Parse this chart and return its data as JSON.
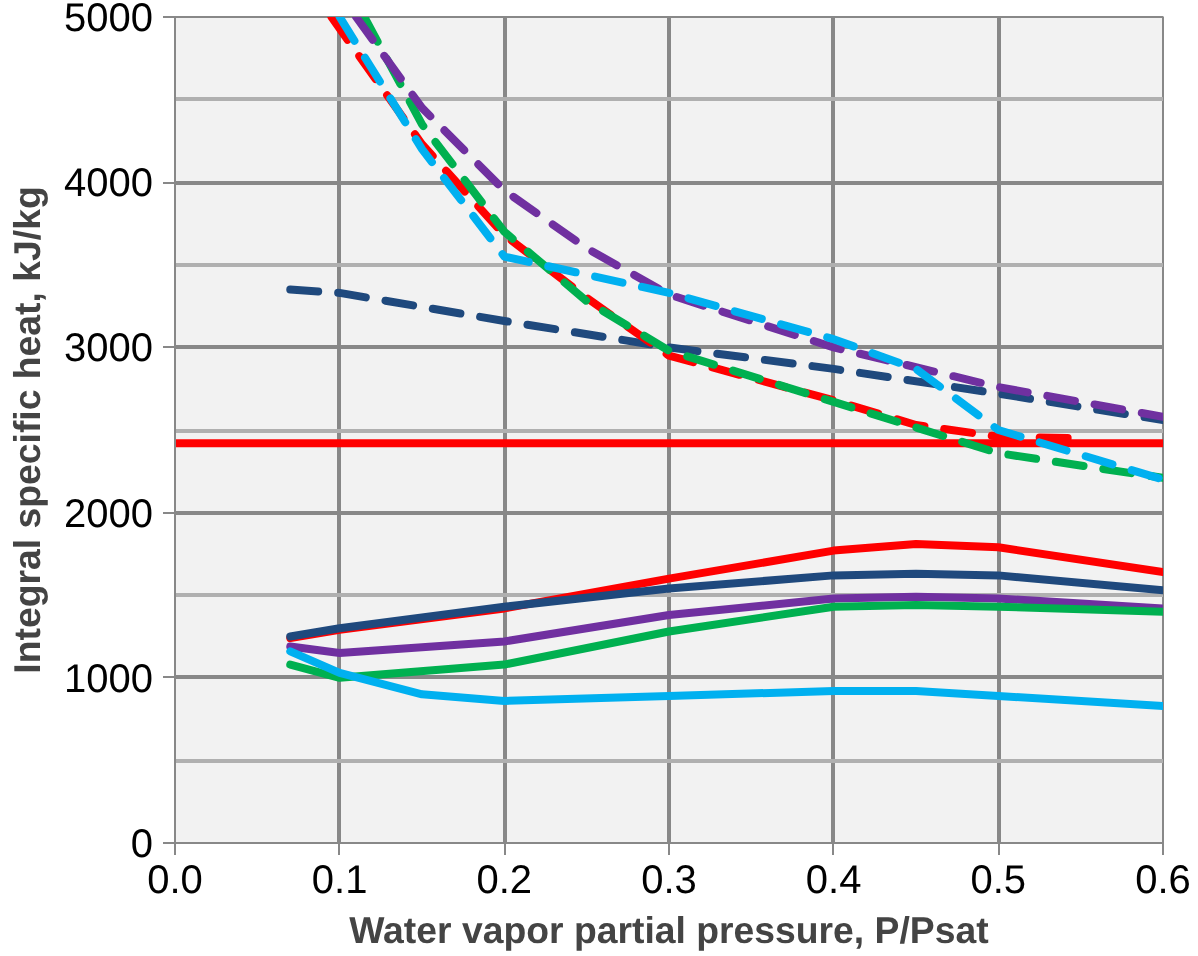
{
  "chart_data": {
    "type": "line",
    "xlabel": "Water vapor partial pressure, P/Psat",
    "ylabel": "Integral specific heat, kJ/kg",
    "xlim": [
      0,
      0.6
    ],
    "ylim": [
      0,
      5000
    ],
    "xticks": [
      {
        "value": 0,
        "label": "0.0"
      },
      0.1,
      0.2,
      0.3,
      0.4,
      0.5,
      0.6
    ],
    "yticks": [
      0,
      1000,
      2000,
      3000,
      4000,
      5000
    ],
    "grid": true,
    "series": [
      {
        "color": "#ff0000",
        "line_style": "solid",
        "x": [
          0,
          0.6
        ],
        "values": [
          2420,
          2420
        ]
      },
      {
        "color": "#ff0000",
        "line_style": "solid",
        "x": [
          0.07,
          0.1,
          0.2,
          0.3,
          0.4,
          0.45,
          0.5,
          0.6
        ],
        "values": [
          1240,
          1290,
          1420,
          1600,
          1770,
          1810,
          1790,
          1640
        ]
      },
      {
        "color": "#1f497d",
        "line_style": "solid",
        "x": [
          0.07,
          0.1,
          0.2,
          0.3,
          0.4,
          0.45,
          0.5,
          0.6
        ],
        "values": [
          1250,
          1300,
          1430,
          1540,
          1620,
          1630,
          1620,
          1530
        ]
      },
      {
        "color": "#7030a0",
        "line_style": "solid",
        "x": [
          0.07,
          0.1,
          0.2,
          0.3,
          0.4,
          0.45,
          0.5,
          0.6
        ],
        "values": [
          1190,
          1150,
          1220,
          1380,
          1480,
          1490,
          1480,
          1420
        ]
      },
      {
        "color": "#00b050",
        "line_style": "solid",
        "x": [
          0.07,
          0.1,
          0.2,
          0.3,
          0.4,
          0.45,
          0.5,
          0.6
        ],
        "values": [
          1080,
          1000,
          1080,
          1280,
          1430,
          1440,
          1430,
          1400
        ]
      },
      {
        "color": "#00b0f0",
        "line_style": "solid",
        "x": [
          0.07,
          0.1,
          0.15,
          0.2,
          0.3,
          0.4,
          0.45,
          0.5,
          0.6
        ],
        "values": [
          1160,
          1030,
          900,
          860,
          890,
          920,
          920,
          890,
          830
        ]
      },
      {
        "color": "#1f497d",
        "line_style": "dashed",
        "x": [
          0.07,
          0.1,
          0.2,
          0.3,
          0.4,
          0.5,
          0.6
        ],
        "values": [
          3350,
          3330,
          3160,
          3000,
          2870,
          2720,
          2560
        ]
      },
      {
        "color": "#ff0000",
        "line_style": "dashed",
        "x": [
          0.095,
          0.15,
          0.2,
          0.25,
          0.3,
          0.4,
          0.45,
          0.5,
          0.55
        ],
        "values": [
          5000,
          4230,
          3680,
          3300,
          2950,
          2680,
          2530,
          2460,
          2450
        ]
      },
      {
        "color": "#00b050",
        "line_style": "dashed",
        "x": [
          0.115,
          0.15,
          0.2,
          0.25,
          0.3,
          0.4,
          0.5,
          0.6
        ],
        "values": [
          5000,
          4350,
          3700,
          3280,
          2980,
          2670,
          2360,
          2210
        ]
      },
      {
        "color": "#7030a0",
        "line_style": "dashed",
        "x": [
          0.11,
          0.15,
          0.2,
          0.25,
          0.3,
          0.4,
          0.5,
          0.6
        ],
        "values": [
          5000,
          4450,
          3950,
          3600,
          3320,
          3000,
          2760,
          2580
        ]
      },
      {
        "color": "#00b0f0",
        "line_style": "dashed",
        "x": [
          0.1,
          0.15,
          0.2,
          0.3,
          0.4,
          0.45,
          0.5,
          0.6
        ],
        "values": [
          5000,
          4200,
          3550,
          3330,
          3050,
          2870,
          2500,
          2200
        ]
      }
    ]
  }
}
